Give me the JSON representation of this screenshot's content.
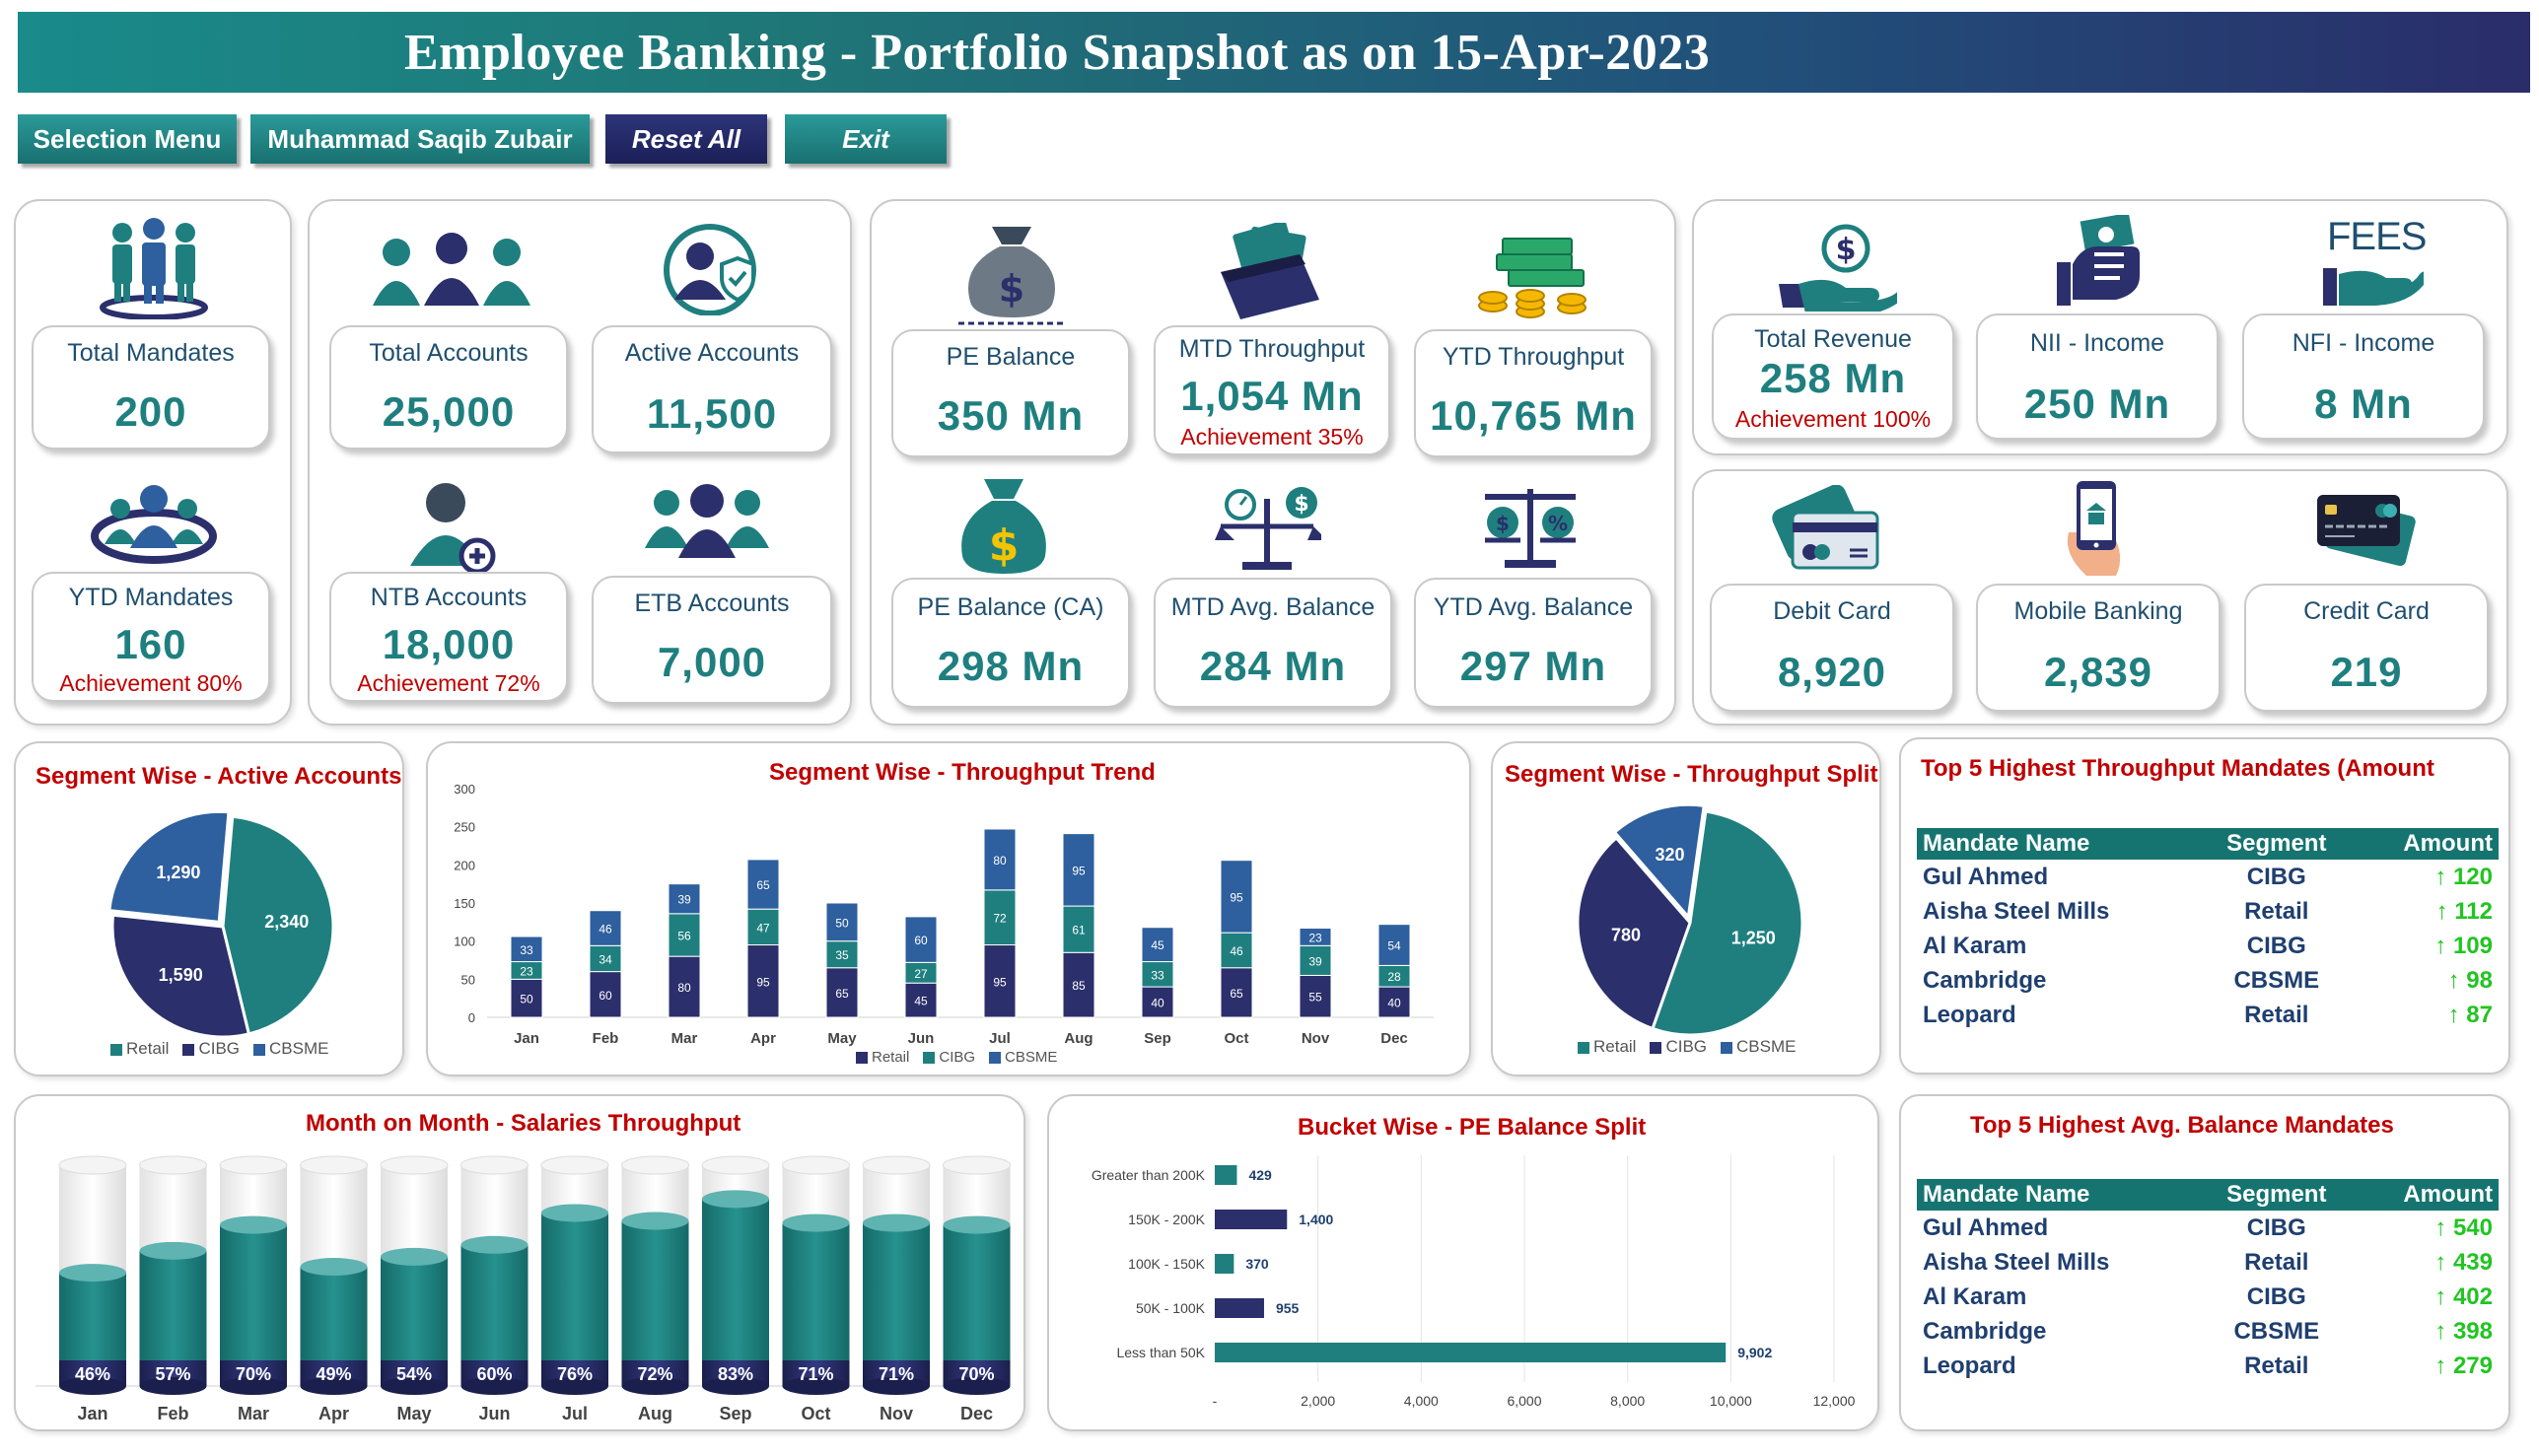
{
  "header": {
    "title": "Employee Banking - Portfolio Snapshot as on 15-Apr-2023"
  },
  "menu": {
    "selection": "Selection Menu",
    "user": "Muhammad Saqib Zubair",
    "reset": "Reset All",
    "exit": "Exit"
  },
  "kpis": {
    "total_mandates": {
      "label": "Total Mandates",
      "value": "200"
    },
    "ytd_mandates": {
      "label": "YTD Mandates",
      "value": "160",
      "achievement": "Achievement  80%"
    },
    "total_accounts": {
      "label": "Total Accounts",
      "value": "25,000"
    },
    "active_accounts": {
      "label": "Active Accounts",
      "value": "11,500"
    },
    "ntb_accounts": {
      "label": "NTB Accounts",
      "value": "18,000",
      "achievement": "Achievement  72%"
    },
    "etb_accounts": {
      "label": "ETB Accounts",
      "value": "7,000"
    },
    "pe_balance": {
      "label": "PE Balance",
      "value": "350 Mn"
    },
    "mtd_throughput": {
      "label": "MTD Throughput",
      "value": "1,054 Mn",
      "achievement": "Achievement  35%"
    },
    "ytd_throughput": {
      "label": "YTD Throughput",
      "value": "10,765 Mn"
    },
    "pe_balance_ca": {
      "label": "PE Balance (CA)",
      "value": "298 Mn"
    },
    "mtd_avg_balance": {
      "label": "MTD Avg. Balance",
      "value": "284 Mn"
    },
    "ytd_avg_balance": {
      "label": "YTD Avg. Balance",
      "value": "297 Mn"
    },
    "total_revenue": {
      "label": "Total Revenue",
      "value": "258 Mn",
      "achievement": "Achievement  100%"
    },
    "nii_income": {
      "label": "NII - Income",
      "value": "250 Mn"
    },
    "nfi_income": {
      "label": "NFI - Income",
      "value": "8 Mn"
    },
    "debit_card": {
      "label": "Debit Card",
      "value": "8,920"
    },
    "mobile_banking": {
      "label": "Mobile Banking",
      "value": "2,839"
    },
    "credit_card": {
      "label": "Credit Card",
      "value": "219"
    }
  },
  "icons": {
    "fees_text": "FEES"
  },
  "colors": {
    "retail": "#1f7f7f",
    "cibg": "#2b2f6b",
    "cbsme": "#2e5f9e",
    "accent_red": "#c00000",
    "up_green": "#22c422"
  },
  "chart_data": [
    {
      "type": "pie",
      "title": "Segment Wise - Active Accounts",
      "labels": [
        "Retail",
        "CIBG",
        "CBSME"
      ],
      "values": [
        2340,
        1590,
        1290
      ],
      "value_labels": [
        "2,340",
        "1,590",
        "1,290"
      ],
      "legend": "bottom"
    },
    {
      "type": "bar",
      "stacked": true,
      "title": "Segment Wise - Throughput Trend",
      "categories": [
        "Jan",
        "Feb",
        "Mar",
        "Apr",
        "May",
        "Jun",
        "Jul",
        "Aug",
        "Sep",
        "Oct",
        "Nov",
        "Dec"
      ],
      "series": [
        {
          "name": "Retail",
          "values": [
            50,
            60,
            80,
            95,
            65,
            45,
            95,
            85,
            40,
            65,
            55,
            40
          ]
        },
        {
          "name": "CIBG",
          "values": [
            23,
            34,
            56,
            47,
            35,
            27,
            72,
            61,
            33,
            46,
            39,
            28
          ]
        },
        {
          "name": "CBSME",
          "values": [
            33,
            46,
            39,
            65,
            50,
            60,
            80,
            95,
            45,
            95,
            23,
            54
          ]
        }
      ],
      "ylim": [
        0,
        300
      ],
      "yticks": [
        0,
        50,
        100,
        150,
        200,
        250,
        300
      ],
      "legend": "bottom"
    },
    {
      "type": "pie",
      "title": "Segment Wise - Throughput Split",
      "labels": [
        "Retail",
        "CIBG",
        "CBSME"
      ],
      "values": [
        1250,
        780,
        320
      ],
      "value_labels": [
        "1,250",
        "780",
        "320"
      ],
      "legend": "bottom"
    },
    {
      "type": "bar",
      "title": "Month on Month - Salaries Throughput",
      "categories": [
        "Jan",
        "Feb",
        "Mar",
        "Apr",
        "May",
        "Jun",
        "Jul",
        "Aug",
        "Sep",
        "Oct",
        "Nov",
        "Dec"
      ],
      "values": [
        46,
        57,
        70,
        49,
        54,
        60,
        76,
        72,
        83,
        71,
        71,
        70
      ],
      "value_labels": [
        "46%",
        "57%",
        "70%",
        "49%",
        "54%",
        "60%",
        "76%",
        "72%",
        "83%",
        "71%",
        "71%",
        "70%"
      ],
      "ylim": [
        0,
        100
      ]
    },
    {
      "type": "bar",
      "orientation": "horizontal",
      "title": "Bucket Wise - PE Balance Split",
      "categories": [
        "Greater than 200K",
        "150K - 200K",
        "100K - 150K",
        "50K - 100K",
        "Less than 50K"
      ],
      "values": [
        429,
        1400,
        370,
        955,
        9902
      ],
      "value_labels": [
        "429",
        "1,400",
        "370",
        "955",
        "9,902"
      ],
      "xlim": [
        0,
        12000
      ],
      "xticks": [
        "-",
        "2,000",
        "4,000",
        "6,000",
        "8,000",
        "10,000",
        "12,000"
      ]
    }
  ],
  "top_throughput": {
    "title": "Top 5 Highest Throughput  Mandates  (Amount",
    "headers": [
      "Mandate Name",
      "Segment",
      "Amount"
    ],
    "rows": [
      {
        "name": "Gul Ahmed",
        "segment": "CIBG",
        "amount": "↑ 120"
      },
      {
        "name": "Aisha Steel Mills",
        "segment": "Retail",
        "amount": "↑ 112"
      },
      {
        "name": "Al Karam",
        "segment": "CIBG",
        "amount": "↑ 109"
      },
      {
        "name": "Cambridge",
        "segment": "CBSME",
        "amount": "↑ 98"
      },
      {
        "name": "Leopard",
        "segment": "Retail",
        "amount": "↑ 87"
      }
    ]
  },
  "top_balance": {
    "title": "Top 5 Highest Avg. Balance Mandates",
    "headers": [
      "Mandate Name",
      "Segment",
      "Amount"
    ],
    "rows": [
      {
        "name": "Gul Ahmed",
        "segment": "CIBG",
        "amount": "↑ 540"
      },
      {
        "name": "Aisha Steel Mills",
        "segment": "Retail",
        "amount": "↑ 439"
      },
      {
        "name": "Al Karam",
        "segment": "CIBG",
        "amount": "↑ 402"
      },
      {
        "name": "Cambridge",
        "segment": "CBSME",
        "amount": "↑ 398"
      },
      {
        "name": "Leopard",
        "segment": "Retail",
        "amount": "↑ 279"
      }
    ]
  }
}
